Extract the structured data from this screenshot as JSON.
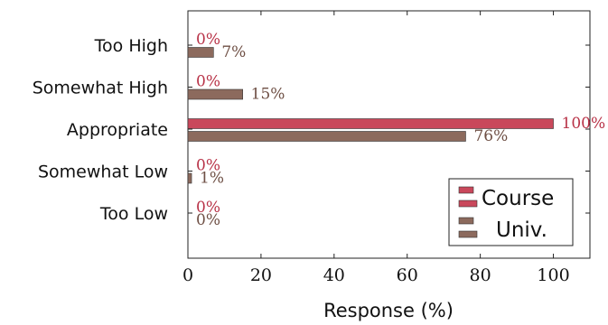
{
  "chart_data": {
    "type": "bar",
    "orientation": "horizontal",
    "categories": [
      "Too High",
      "Somewhat High",
      "Appropriate",
      "Somewhat Low",
      "Too Low"
    ],
    "series": [
      {
        "name": "Course",
        "values": [
          0,
          0,
          100,
          0,
          0
        ],
        "labels": [
          "0%",
          "0%",
          "100%",
          "0%",
          "0%"
        ],
        "color": "#c9485b"
      },
      {
        "name": "Univ.",
        "values": [
          7,
          15,
          76,
          1,
          0
        ],
        "labels": [
          "7%",
          "15%",
          "76%",
          "1%",
          "0%"
        ],
        "color": "#8c6a5d"
      }
    ],
    "xlabel": "Response (%)",
    "xlim": [
      0,
      110
    ],
    "xticks": [
      0,
      20,
      40,
      60,
      80,
      100
    ],
    "xtick_labels": [
      "0",
      "20",
      "40",
      "60",
      "80",
      "100"
    ],
    "legend_position": "bottom-right",
    "grid": false
  }
}
